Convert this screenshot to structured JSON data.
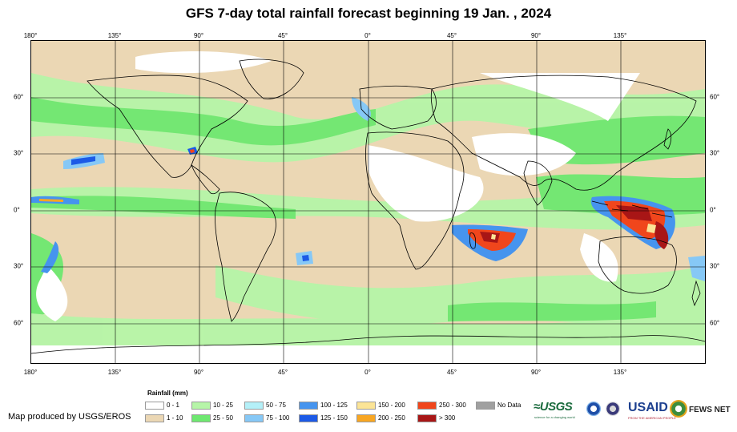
{
  "title": "GFS 7-day total rainfall forecast beginning 19 Jan. , 2024",
  "map": {
    "longitude_ticks": [
      "180°",
      "135°",
      "90°",
      "45°",
      "0°",
      "45°",
      "90°",
      "135°"
    ],
    "latitude_ticks_left": [
      "60°",
      "30°",
      "0°",
      "30°",
      "60°"
    ],
    "latitude_ticks_right": [
      "60°",
      "30°",
      "0°",
      "30°",
      "60°"
    ]
  },
  "legend": {
    "title": "Rainfall (mm)",
    "items": [
      {
        "label": "0 - 1",
        "color": "#ffffff"
      },
      {
        "label": "1 - 10",
        "color": "#ebd7b4"
      },
      {
        "label": "10 - 25",
        "color": "#b6f5a8"
      },
      {
        "label": "25 - 50",
        "color": "#6ee870"
      },
      {
        "label": "50 - 75",
        "color": "#b4f0f8"
      },
      {
        "label": "75 - 100",
        "color": "#86c8f6"
      },
      {
        "label": "100 - 125",
        "color": "#4694ee"
      },
      {
        "label": "125 - 150",
        "color": "#1c5ae6"
      },
      {
        "label": "150 - 200",
        "color": "#fbe496"
      },
      {
        "label": "200 - 250",
        "color": "#f8a622"
      },
      {
        "label": "250 - 300",
        "color": "#f0461c"
      },
      {
        "label": "> 300",
        "color": "#a81616"
      },
      {
        "label": "No Data",
        "color": "#a0a0a0"
      }
    ]
  },
  "credit": "Map produced by USGS/EROS",
  "logos": {
    "usgs": "≈USGS",
    "usgs_tagline": "science for a changing world",
    "usaid": "USAID",
    "usaid_tagline": "FROM THE AMERICAN PEOPLE",
    "fews": "FEWS NET"
  },
  "colors": {
    "land_outline": "#000000",
    "gridline": "#000000",
    "background": "#ebd7b4"
  }
}
